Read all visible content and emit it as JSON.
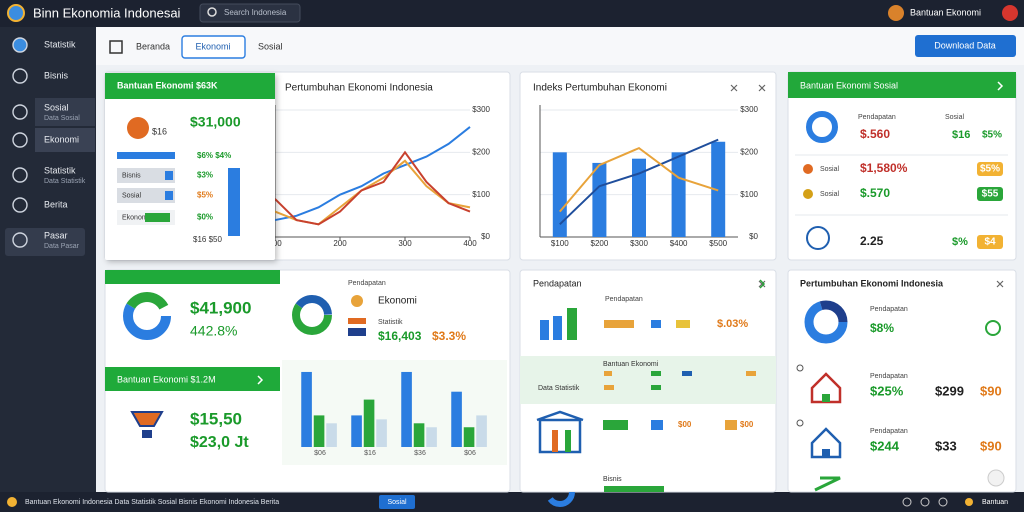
{
  "header": {
    "title": "Binn Ekonomia Indonesai",
    "search": "Search Indonesia",
    "user": "Bantuan Ekonomi"
  },
  "sidebar": {
    "items": [
      {
        "label": "Statistik"
      },
      {
        "label": "Bisnis"
      },
      {
        "label": "Sosial",
        "sub": "Data Sosial"
      },
      {
        "label": "Ekonomi"
      },
      {
        "label": "Statistik",
        "sub": "Data Statistik"
      },
      {
        "label": "Berita"
      },
      {
        "label": "Pasar",
        "sub": "Data Pasar"
      }
    ]
  },
  "toolbar": {
    "tabs": [
      "Beranda",
      "Ekonomi",
      "Sosial"
    ],
    "button": "Download Data"
  },
  "card": {
    "title": "Bantuan Ekonomi $63K",
    "value": "$31,000",
    "sub": "$16",
    "pct": "$6% $4%",
    "rows": [
      {
        "label": "Bisnis",
        "value": "$3%"
      },
      {
        "label": "Sosial",
        "value": "$5%"
      },
      {
        "label": "Ekonomi",
        "value": "$0%"
      }
    ],
    "foot": "$16 $50"
  },
  "panel_c": {
    "title": "Bantuan Ekonomi Sosial",
    "head": [
      "Pendapatan",
      "Sosial"
    ],
    "rows": [
      {
        "value": "$.560",
        "a": "$16",
        "b": "$5%"
      },
      {
        "label": "Sosial",
        "value": "$1,580%",
        "b": "$5%"
      },
      {
        "label": "Sosial",
        "value": "$.570",
        "b": "$55"
      },
      {
        "value": "2.25",
        "a": "$%",
        "b": "$4"
      }
    ]
  },
  "panel_d": {
    "value1": "$41,900",
    "value2": "442.8%",
    "title2": "Pendapatan",
    "label": "Ekonomi",
    "caption": "Statistik",
    "value3": "$16,403",
    "value4": "$3.3%",
    "header": "Bantuan Ekonomi $1.2M",
    "value5": "$15,50",
    "value6": "$23,0 Jt"
  },
  "panel_e": {
    "title": "Pendapatan",
    "sub": "Pendapatan",
    "value": "$.03%",
    "label1": "Bantuan Ekonomi",
    "label2": "Data Statistik",
    "v2": "$00",
    "v3": "$00",
    "foot": "Bisnis"
  },
  "panel_f": {
    "title": "Pertumbuhan Ekonomi Indonesia",
    "sub": "Pendapatan",
    "v1": "$8%",
    "rows": [
      {
        "label": "Pendapatan",
        "v1": "$25%",
        "v2": "$299",
        "v3": "$90"
      },
      {
        "label": "Pendapatan",
        "v1": "$244",
        "v2": "$33",
        "v3": "$90"
      }
    ]
  },
  "status": {
    "text": "Bantuan Ekonomi Indonesia  Data Statistik Sosial Bisnis Ekonomi Indonesia Berita",
    "badge": "Sosial",
    "right": "Bantuan"
  },
  "chart_data": [
    {
      "type": "line",
      "title": "Pertumbuhan Ekonomi Indonesia",
      "x": [
        100,
        133,
        167,
        200,
        233,
        267,
        300,
        333,
        367,
        400
      ],
      "xlim": [
        100,
        400
      ],
      "xticks": [
        100,
        200,
        300,
        400
      ],
      "ylim": [
        0,
        300
      ],
      "yticks": [
        {
          "value": 0,
          "label": "$0"
        },
        {
          "value": 100,
          "label": "$100"
        },
        {
          "value": 200,
          "label": "$200"
        },
        {
          "value": 300,
          "label": "$300"
        }
      ],
      "grid": true,
      "series": [
        {
          "color": "#2b7de0",
          "values": [
            40,
            50,
            70,
            100,
            120,
            150,
            170,
            190,
            220,
            260
          ]
        },
        {
          "color": "#e8a33a",
          "values": [
            60,
            40,
            30,
            70,
            110,
            140,
            180,
            120,
            80,
            70
          ]
        },
        {
          "color": "#c8412e",
          "values": [
            90,
            40,
            30,
            60,
            110,
            130,
            200,
            130,
            80,
            60
          ]
        }
      ]
    },
    {
      "type": "bar_line",
      "title": "Indeks Pertumbuhan Ekonomi",
      "categories": [
        "$100",
        "$200",
        "$300",
        "$400",
        "$500"
      ],
      "ylim": [
        0,
        300
      ],
      "yticks": [
        {
          "value": 0,
          "label": "$0"
        },
        {
          "value": 100,
          "label": "$100"
        },
        {
          "value": 200,
          "label": "$200"
        },
        {
          "value": 300,
          "label": "$300"
        }
      ],
      "grid": true,
      "series": [
        {
          "type": "bar",
          "color": "#2b7de0",
          "values": [
            200,
            175,
            185,
            200,
            225
          ]
        },
        {
          "type": "line",
          "color": "#1f4e9c",
          "values": [
            30,
            120,
            150,
            190,
            230
          ]
        },
        {
          "type": "line",
          "color": "#e8a33a",
          "values": [
            60,
            170,
            210,
            140,
            110
          ]
        }
      ]
    },
    {
      "type": "grouped_bar",
      "categories": [
        "$06",
        "$16",
        "$36",
        "$06"
      ],
      "ylim": [
        0,
        100
      ],
      "series": [
        {
          "color": "#2b7de0",
          "values": [
            95,
            40,
            95,
            70
          ]
        },
        {
          "color": "#2aa63a",
          "values": [
            40,
            60,
            30,
            25
          ]
        },
        {
          "color": "#c9dbe9",
          "values": [
            30,
            35,
            25,
            40
          ]
        }
      ]
    }
  ]
}
